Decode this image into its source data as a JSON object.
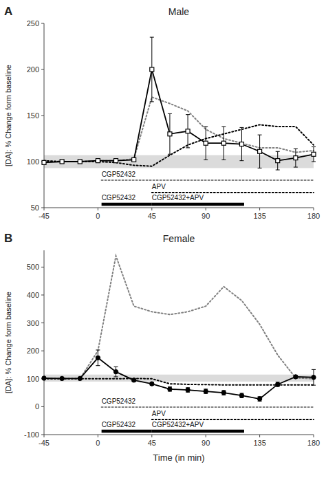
{
  "chart_data": [
    {
      "type": "line",
      "panel": "A",
      "title": "Male",
      "x": [
        -45,
        -30,
        -15,
        0,
        15,
        30,
        45,
        60,
        75,
        90,
        105,
        120,
        135,
        150,
        165,
        180
      ],
      "series": [
        {
          "values": [
            99,
            100,
            100,
            101,
            101,
            102,
            200,
            130,
            133,
            120,
            120,
            119,
            111,
            101,
            104,
            108
          ],
          "errors": [
            2,
            2,
            2,
            2,
            2,
            2,
            35,
            22,
            18,
            18,
            18,
            18,
            18,
            10,
            10,
            8
          ],
          "color": "black",
          "marker": "square",
          "line_style": "solid"
        },
        {
          "name": "CGP52432",
          "values": [
            100,
            100,
            100,
            101,
            101,
            103,
            170,
            163,
            155,
            135,
            125,
            120,
            115,
            115,
            110,
            112
          ],
          "color": "gray",
          "line_style": "dotted",
          "period": [
            3,
            180
          ]
        },
        {
          "name": "APV",
          "values": [
            101,
            100,
            100,
            100,
            99,
            96,
            95,
            107,
            118,
            125,
            130,
            135,
            140,
            138,
            138,
            118
          ],
          "color": "black",
          "line_style": "dotted",
          "period": [
            45,
            180
          ]
        }
      ],
      "band": {
        "values": [
          93,
          107
        ],
        "color": "#cccccc"
      },
      "annotations": [
        {
          "text": "CGP52432",
          "x": [
            3,
            45
          ]
        },
        {
          "text": "CGP52432+APV",
          "x": [
            45,
            122
          ]
        }
      ],
      "xlim": [
        -45,
        180
      ],
      "xticks": [
        -45,
        0,
        45,
        90,
        135,
        180
      ],
      "ylim": [
        50,
        250
      ],
      "yticks": [
        50,
        100,
        150,
        200,
        250
      ],
      "y_label": "[DA]: % Change form baseline"
    },
    {
      "type": "line",
      "panel": "B",
      "title": "Female",
      "x": [
        -45,
        -30,
        -15,
        0,
        15,
        30,
        45,
        60,
        75,
        90,
        105,
        120,
        135,
        150,
        165,
        180
      ],
      "series": [
        {
          "values": [
            102,
            101,
            101,
            175,
            125,
            95,
            82,
            63,
            60,
            55,
            50,
            40,
            28,
            80,
            107,
            105
          ],
          "errors": [
            2,
            2,
            2,
            28,
            18,
            5,
            5,
            8,
            8,
            8,
            8,
            8,
            8,
            8,
            5,
            28
          ],
          "color": "black",
          "marker": "circle",
          "line_style": "solid"
        },
        {
          "name": "CGP52432",
          "values": [
            100,
            100,
            100,
            200,
            540,
            360,
            340,
            330,
            340,
            360,
            430,
            380,
            295,
            185,
            103,
            100
          ],
          "color": "gray",
          "line_style": "dotted",
          "period": [
            3,
            180
          ]
        },
        {
          "name": "APV",
          "values": [
            100,
            100,
            100,
            100,
            100,
            101,
            100,
            82,
            80,
            79,
            78,
            78,
            78,
            78,
            78,
            78
          ],
          "color": "black",
          "line_style": "dotted",
          "period": [
            45,
            180
          ]
        }
      ],
      "band": {
        "values": [
          90,
          115
        ],
        "color": "#cccccc"
      },
      "annotations": [
        {
          "text": "CGP52432",
          "x": [
            3,
            45
          ]
        },
        {
          "text": "CGP52432+APV",
          "x": [
            45,
            122
          ]
        }
      ],
      "xlim": [
        -45,
        180
      ],
      "xticks": [
        -45,
        0,
        45,
        90,
        135,
        180
      ],
      "ylim": [
        -100,
        560
      ],
      "yticks": [
        -100,
        0,
        100,
        200,
        300,
        400,
        500
      ],
      "x_label": "Time (in min)",
      "y_label": "[DA]: % Change form baseline"
    }
  ]
}
